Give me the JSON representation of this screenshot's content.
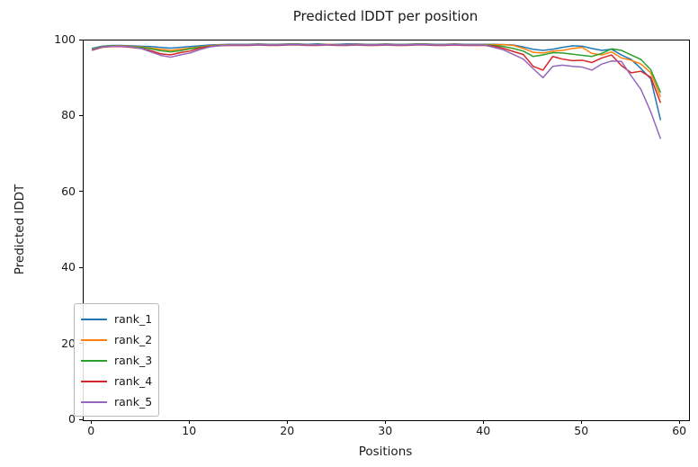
{
  "figure": {
    "title": "Predicted lDDT per position",
    "xlabel": "Positions",
    "ylabel": "Predicted lDDT"
  },
  "chart_data": {
    "type": "line",
    "title": "Predicted lDDT per position",
    "xlabel": "Positions",
    "ylabel": "Predicted lDDT",
    "xlim": [
      -0.85,
      60.9
    ],
    "ylim": [
      0,
      100
    ],
    "xticks": [
      0,
      10,
      20,
      30,
      40,
      50,
      60
    ],
    "yticks": [
      0,
      20,
      40,
      60,
      80,
      100
    ],
    "grid": false,
    "legend_position": "lower-left",
    "line_width": 1.5,
    "x": [
      0,
      1,
      2,
      3,
      4,
      5,
      6,
      7,
      8,
      9,
      10,
      11,
      12,
      13,
      14,
      15,
      16,
      17,
      18,
      19,
      20,
      21,
      22,
      23,
      24,
      25,
      26,
      27,
      28,
      29,
      30,
      31,
      32,
      33,
      34,
      35,
      36,
      37,
      38,
      39,
      40,
      41,
      42,
      43,
      44,
      45,
      46,
      47,
      48,
      49,
      50,
      51,
      52,
      53,
      54,
      55,
      56,
      57,
      58
    ],
    "series": [
      {
        "name": "rank_1",
        "color": "#1f77b4",
        "values": [
          97.9,
          98.5,
          98.7,
          98.7,
          98.6,
          98.5,
          98.4,
          98.2,
          98.0,
          98.2,
          98.4,
          98.6,
          98.8,
          98.9,
          99.0,
          99.0,
          99.0,
          99.1,
          99.0,
          99.0,
          99.1,
          99.1,
          99.0,
          99.1,
          99.0,
          99.0,
          99.1,
          99.1,
          99.0,
          99.0,
          99.1,
          99.0,
          99.0,
          99.1,
          99.1,
          99.0,
          99.0,
          99.1,
          99.0,
          99.0,
          99.0,
          99.0,
          98.9,
          98.8,
          98.3,
          97.7,
          97.4,
          97.7,
          98.2,
          98.6,
          98.5,
          97.9,
          97.4,
          97.7,
          96.2,
          95.0,
          92.6,
          89.9,
          79.0
        ]
      },
      {
        "name": "rank_2",
        "color": "#ff7f0e",
        "values": [
          97.7,
          98.4,
          98.6,
          98.6,
          98.5,
          98.3,
          98.0,
          97.7,
          97.4,
          97.7,
          98.0,
          98.3,
          98.6,
          98.8,
          98.9,
          98.9,
          98.9,
          99.0,
          98.9,
          98.9,
          99.0,
          99.0,
          98.9,
          98.9,
          99.0,
          98.9,
          98.9,
          99.0,
          98.9,
          98.9,
          99.0,
          98.9,
          98.9,
          99.0,
          99.0,
          98.9,
          98.9,
          99.0,
          98.9,
          98.9,
          98.9,
          98.9,
          98.9,
          98.7,
          97.9,
          96.9,
          96.7,
          97.2,
          97.4,
          97.9,
          98.2,
          96.6,
          96.2,
          97.0,
          95.4,
          94.8,
          93.8,
          91.5,
          85.1
        ]
      },
      {
        "name": "rank_3",
        "color": "#2ca02c",
        "values": [
          97.8,
          98.4,
          98.6,
          98.5,
          98.4,
          98.2,
          97.8,
          97.3,
          97.0,
          97.3,
          97.8,
          98.2,
          98.5,
          98.7,
          98.8,
          98.8,
          98.8,
          98.9,
          98.8,
          98.8,
          98.9,
          98.9,
          98.8,
          98.8,
          98.9,
          98.8,
          98.8,
          98.9,
          98.8,
          98.8,
          98.9,
          98.8,
          98.8,
          98.9,
          98.9,
          98.8,
          98.8,
          98.9,
          98.8,
          98.8,
          98.8,
          98.7,
          98.4,
          97.9,
          97.2,
          95.8,
          96.2,
          96.8,
          96.7,
          96.4,
          96.1,
          95.8,
          96.6,
          97.8,
          97.4,
          96.2,
          95.0,
          92.3,
          86.3
        ]
      },
      {
        "name": "rank_4",
        "color": "#d62728",
        "values": [
          97.4,
          98.2,
          98.4,
          98.4,
          98.2,
          97.9,
          97.3,
          96.5,
          96.2,
          96.8,
          97.2,
          98.0,
          98.4,
          98.6,
          98.7,
          98.7,
          98.7,
          98.8,
          98.7,
          98.7,
          98.8,
          98.8,
          98.7,
          98.7,
          98.8,
          98.7,
          98.7,
          98.8,
          98.7,
          98.7,
          98.8,
          98.7,
          98.7,
          98.8,
          98.8,
          98.7,
          98.7,
          98.8,
          98.7,
          98.7,
          98.7,
          98.5,
          97.9,
          97.1,
          96.3,
          93.2,
          92.2,
          95.8,
          95.1,
          94.7,
          94.8,
          94.2,
          95.4,
          96.2,
          93.4,
          91.5,
          91.9,
          90.3,
          83.6
        ]
      },
      {
        "name": "rank_5",
        "color": "#9467bd",
        "values": [
          97.6,
          98.3,
          98.5,
          98.5,
          98.3,
          97.9,
          97.0,
          96.1,
          95.6,
          96.2,
          96.7,
          97.6,
          98.3,
          98.6,
          98.8,
          98.8,
          98.8,
          98.9,
          98.8,
          98.8,
          98.9,
          98.9,
          98.8,
          98.8,
          98.9,
          98.8,
          98.8,
          98.9,
          98.8,
          98.8,
          98.9,
          98.8,
          98.8,
          98.9,
          98.9,
          98.8,
          98.8,
          98.9,
          98.8,
          98.8,
          98.8,
          98.2,
          97.5,
          96.3,
          95.1,
          92.6,
          90.2,
          93.2,
          93.5,
          93.2,
          93.0,
          92.2,
          93.8,
          94.6,
          94.5,
          90.7,
          87.1,
          81.2,
          74.1
        ]
      }
    ]
  }
}
